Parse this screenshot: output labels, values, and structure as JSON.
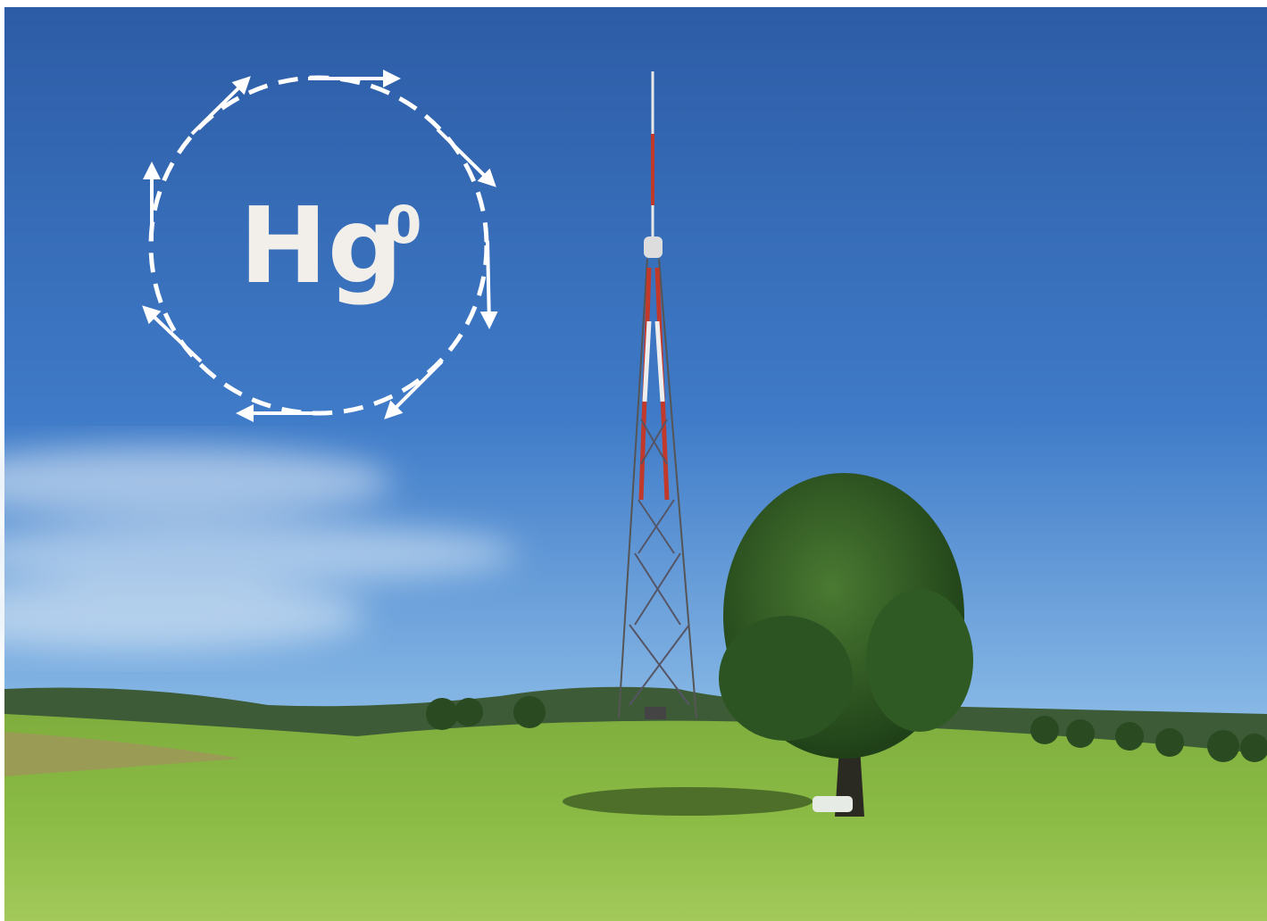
{
  "overlay": {
    "text": "Hg",
    "superscript": "0"
  }
}
